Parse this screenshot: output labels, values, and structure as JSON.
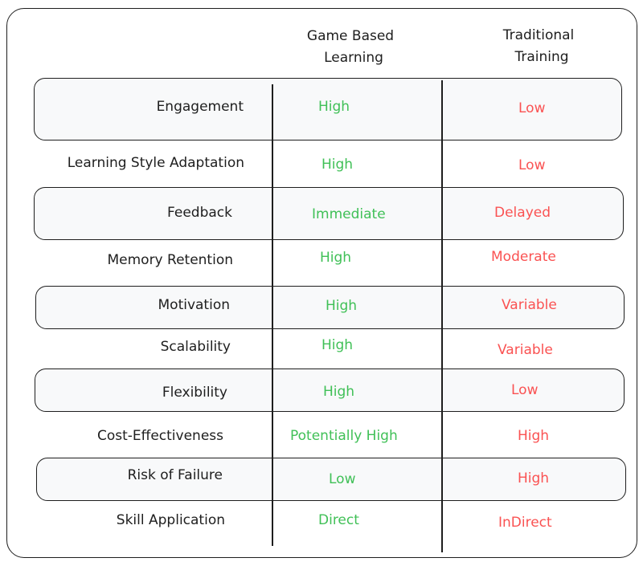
{
  "header": {
    "col1_line1": "Game Based",
    "col1_line2": "Learning",
    "col2_line1": "Traditional",
    "col2_line2": "Training"
  },
  "colors": {
    "positive": "#40c057",
    "negative": "#fa5252",
    "band": "#f8f9fa"
  },
  "rows": [
    {
      "label": "Engagement",
      "game": "High",
      "traditional": "Low"
    },
    {
      "label": "Learning Style Adaptation",
      "game": "High",
      "traditional": "Low"
    },
    {
      "label": "Feedback",
      "game": "Immediate",
      "traditional": "Delayed"
    },
    {
      "label": "Memory Retention",
      "game": "High",
      "traditional": "Moderate"
    },
    {
      "label": "Motivation",
      "game": "High",
      "traditional": "Variable"
    },
    {
      "label": "Scalability",
      "game": "High",
      "traditional": "Variable"
    },
    {
      "label": "Flexibility",
      "game": "High",
      "traditional": "Low"
    },
    {
      "label": "Cost-Effectiveness",
      "game": "Potentially High",
      "traditional": "High"
    },
    {
      "label": "Risk of Failure",
      "game": "Low",
      "traditional": "High"
    },
    {
      "label": "Skill Application",
      "game": "Direct",
      "traditional": "InDirect"
    }
  ]
}
